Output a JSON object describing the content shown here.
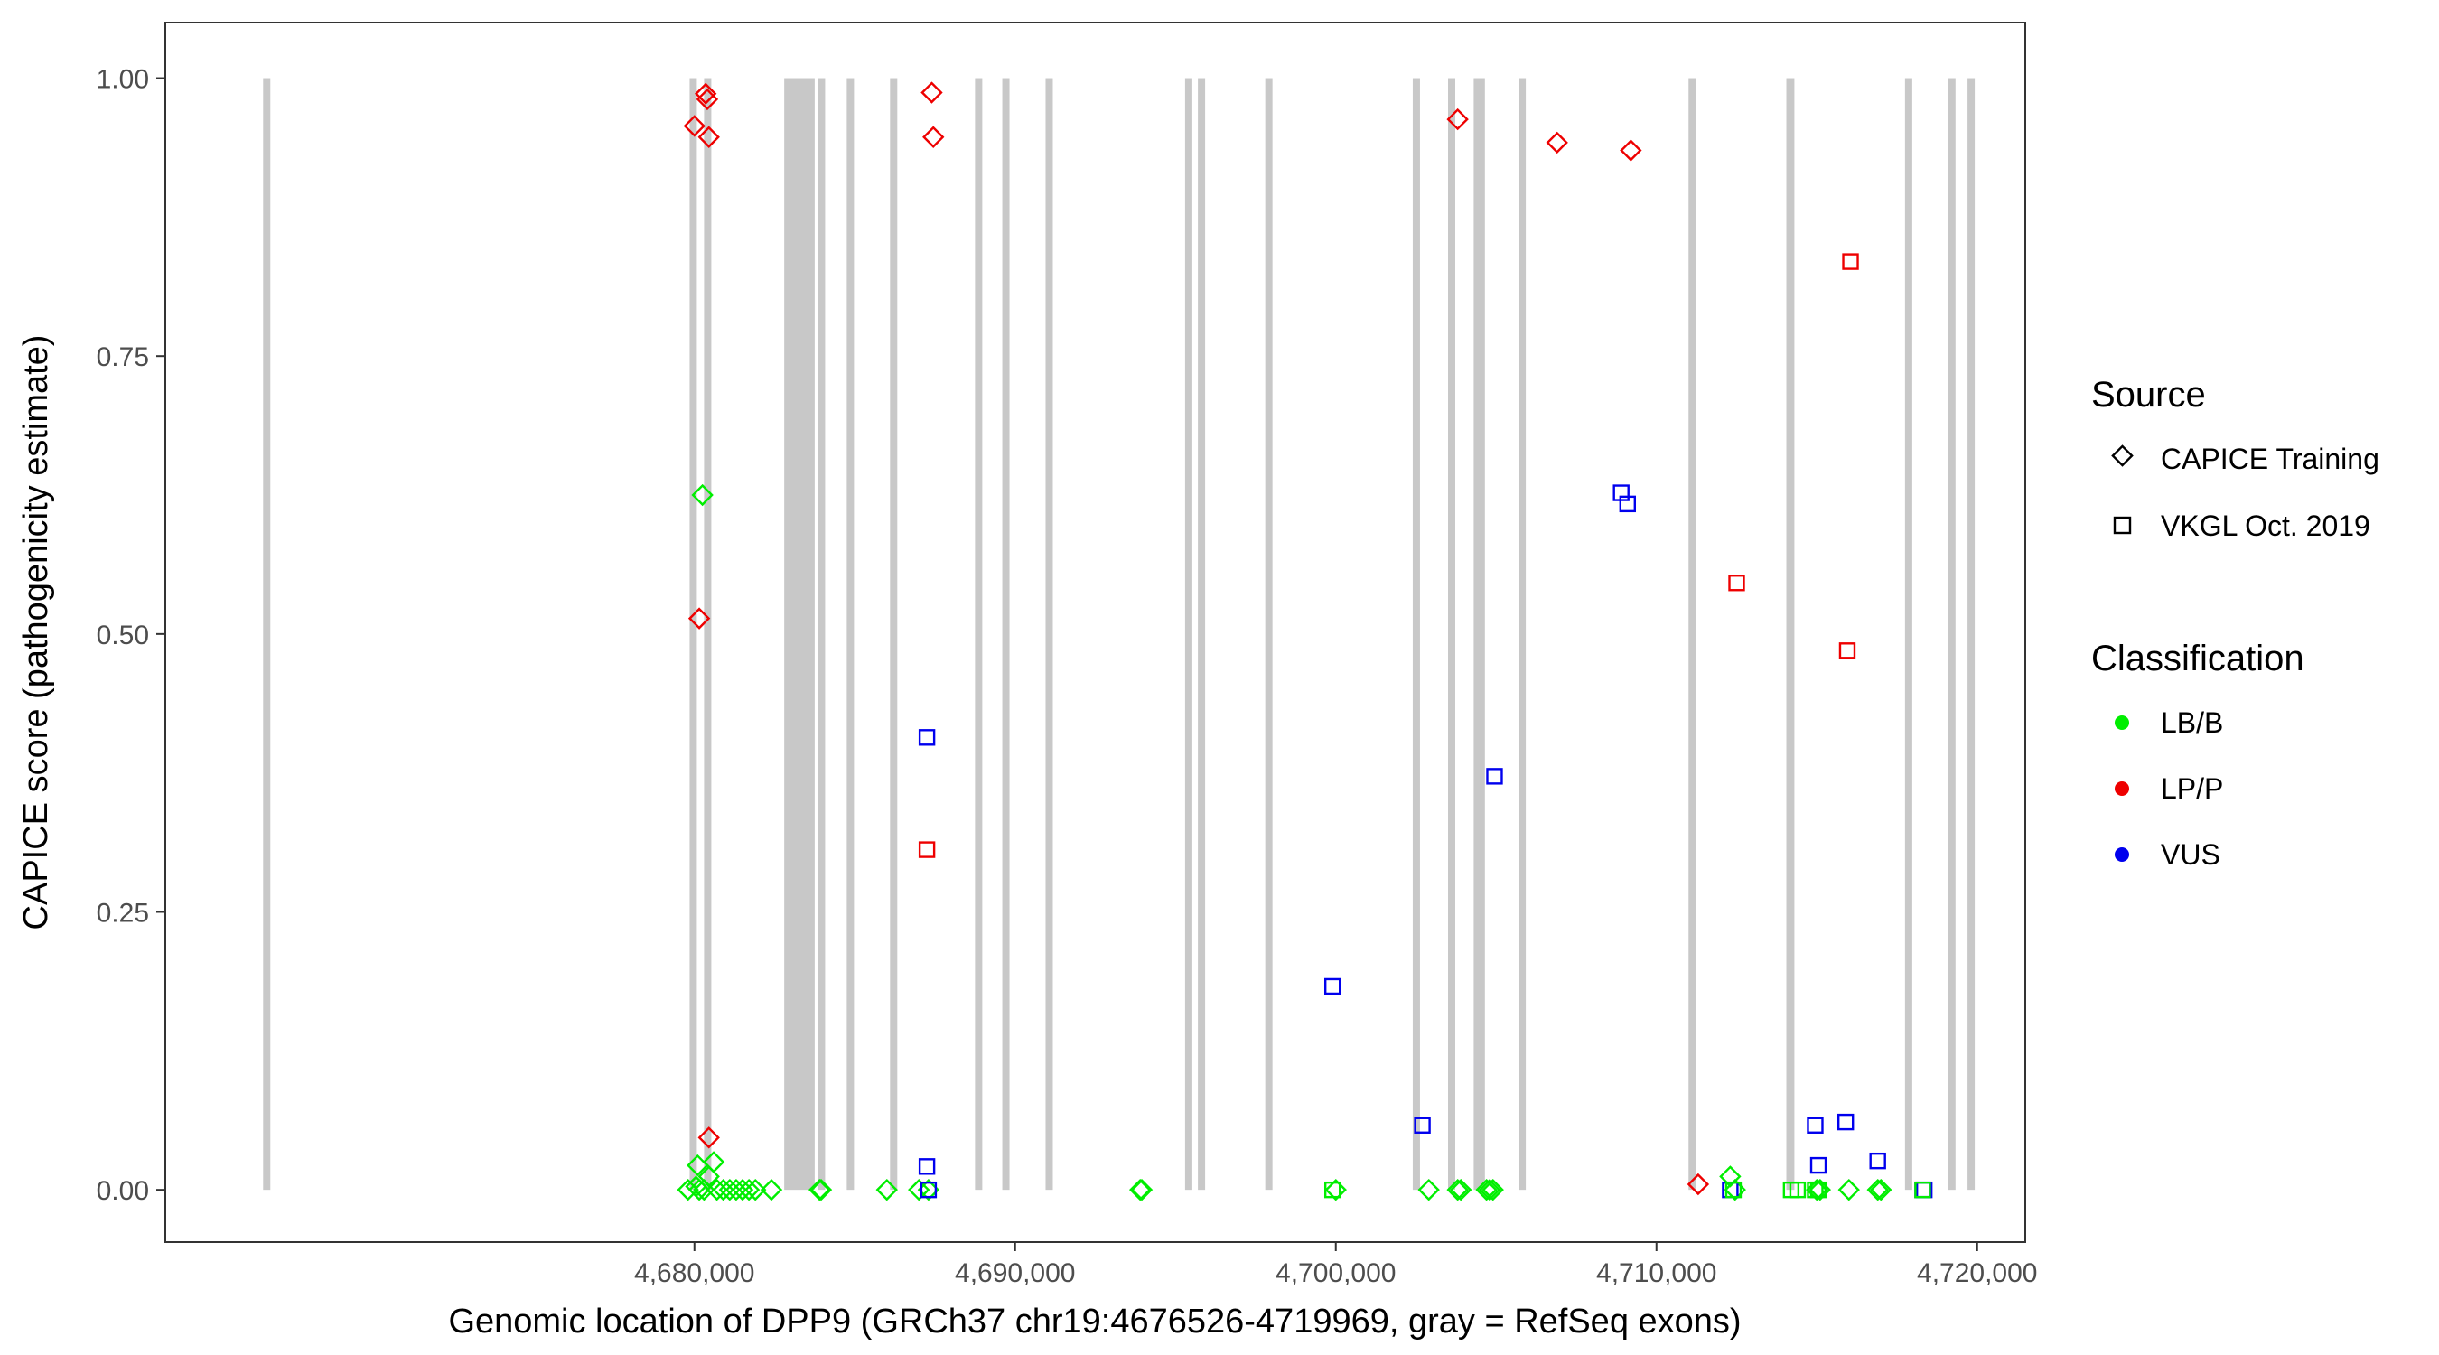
{
  "chart_data": {
    "type": "scatter",
    "xlabel": "Genomic location of DPP9 (GRCh37 chr19:4676526-4719969, gray = RefSeq exons)",
    "ylabel": "CAPICE score (pathogenicity estimate)",
    "xlim": [
      4663500,
      4721500
    ],
    "ylim": [
      -0.047,
      1.05
    ],
    "x_ticks": [
      4680000,
      4690000,
      4700000,
      4710000,
      4720000
    ],
    "x_tick_labels": [
      "4,680,000",
      "4,690,000",
      "4,700,000",
      "4,710,000",
      "4,720,000"
    ],
    "y_ticks": [
      0,
      0.25,
      0.5,
      0.75,
      1
    ],
    "y_tick_labels": [
      "0.00",
      "0.25",
      "0.50",
      "0.75",
      "1.00"
    ],
    "grid": false,
    "exons": [
      [
        4666550,
        4666750
      ],
      [
        4679850,
        4680050
      ],
      [
        4680300,
        4680400
      ],
      [
        4682800,
        4683750
      ],
      [
        4683850,
        4683900
      ],
      [
        4684750,
        4684850
      ],
      [
        4686100,
        4686250
      ],
      [
        4688750,
        4688900
      ],
      [
        4689600,
        4689800
      ],
      [
        4690950,
        4691050
      ],
      [
        4695300,
        4695500
      ],
      [
        4695700,
        4695900
      ],
      [
        4697800,
        4698000
      ],
      [
        4702400,
        4702550
      ],
      [
        4703500,
        4703650
      ],
      [
        4704300,
        4704650
      ],
      [
        4705700,
        4705850
      ],
      [
        4711000,
        4711050
      ],
      [
        4714050,
        4714300
      ],
      [
        4717750,
        4717850
      ],
      [
        4719100,
        4719250
      ],
      [
        4719700,
        4719850
      ]
    ],
    "legend": {
      "source_title": "Source",
      "source_items": [
        {
          "label": "CAPICE Training",
          "shape": "diamond"
        },
        {
          "label": "VKGL Oct. 2019",
          "shape": "square"
        }
      ],
      "class_title": "Classification",
      "class_items": [
        {
          "label": "LB/B",
          "color": "#00ee00"
        },
        {
          "label": "LP/P",
          "color": "#ee0000"
        },
        {
          "label": "VUS",
          "color": "#0000ee"
        }
      ],
      "placement": "right"
    },
    "colors": {
      "LB/B": "#00ee00",
      "LP/P": "#ee0000",
      "VUS": "#0000ee",
      "exon": "#c8c8c8"
    },
    "series": [
      {
        "name": "CAPICE Training / LP/P",
        "shape": "diamond",
        "class": "LP/P",
        "points": [
          [
            4680000,
            0.957
          ],
          [
            4680350,
            0.986
          ],
          [
            4680400,
            0.981
          ],
          [
            4680450,
            0.947
          ],
          [
            4687400,
            0.987
          ],
          [
            4687450,
            0.947
          ],
          [
            4680150,
            0.514
          ],
          [
            4680450,
            0.047
          ],
          [
            4703800,
            0.963
          ],
          [
            4706900,
            0.942
          ],
          [
            4709200,
            0.935
          ],
          [
            4711300,
            0.005
          ]
        ]
      },
      {
        "name": "CAPICE Training / LB/B",
        "shape": "diamond",
        "class": "LB/B",
        "points": [
          [
            4680250,
            0.625
          ],
          [
            4680100,
            0.022
          ],
          [
            4680600,
            0.025
          ],
          [
            4680450,
            0.012
          ],
          [
            4680050,
            0.003
          ],
          [
            4679800,
            0.0
          ],
          [
            4680150,
            0.0
          ],
          [
            4680300,
            0.0
          ],
          [
            4680700,
            0.0
          ],
          [
            4680900,
            0.0
          ],
          [
            4681100,
            0.0
          ],
          [
            4681300,
            0.0
          ],
          [
            4681500,
            0.0
          ],
          [
            4681700,
            0.0
          ],
          [
            4681900,
            0.0
          ],
          [
            4682400,
            0.0
          ],
          [
            4683900,
            0.0
          ],
          [
            4683950,
            0.0
          ],
          [
            4686000,
            0.0
          ],
          [
            4687000,
            0.0
          ],
          [
            4687300,
            0.0
          ],
          [
            4693900,
            0.0
          ],
          [
            4693950,
            0.0
          ],
          [
            4700000,
            0.0
          ],
          [
            4702900,
            0.0
          ],
          [
            4703800,
            0.0
          ],
          [
            4703900,
            0.0
          ],
          [
            4704700,
            0.0
          ],
          [
            4704800,
            0.0
          ],
          [
            4704900,
            0.0
          ],
          [
            4712300,
            0.012
          ],
          [
            4712450,
            0.0
          ],
          [
            4715000,
            0.0
          ],
          [
            4715100,
            0.0
          ],
          [
            4716000,
            0.0
          ],
          [
            4716900,
            0.0
          ],
          [
            4717000,
            0.0
          ]
        ]
      },
      {
        "name": "VKGL Oct. 2019 / LP/P",
        "shape": "square",
        "class": "LP/P",
        "points": [
          [
            4687250,
            0.306
          ],
          [
            4712500,
            0.546
          ],
          [
            4716050,
            0.835
          ],
          [
            4715950,
            0.485
          ]
        ]
      },
      {
        "name": "VKGL Oct. 2019 / VUS",
        "shape": "square",
        "class": "VUS",
        "points": [
          [
            4687250,
            0.407
          ],
          [
            4687250,
            0.021
          ],
          [
            4687300,
            0.0
          ],
          [
            4699900,
            0.183
          ],
          [
            4702700,
            0.058
          ],
          [
            4704950,
            0.372
          ],
          [
            4708900,
            0.627
          ],
          [
            4709100,
            0.617
          ],
          [
            4712300,
            0.0
          ],
          [
            4714950,
            0.058
          ],
          [
            4715050,
            0.022
          ],
          [
            4715900,
            0.061
          ],
          [
            4716900,
            0.026
          ],
          [
            4718300,
            0.0
          ],
          [
            4718350,
            0.0
          ]
        ]
      },
      {
        "name": "VKGL Oct. 2019 / LB/B",
        "shape": "square",
        "class": "LB/B",
        "points": [
          [
            4699900,
            0.0
          ],
          [
            4712400,
            0.0
          ],
          [
            4714200,
            0.0
          ],
          [
            4714400,
            0.0
          ],
          [
            4714950,
            0.0
          ],
          [
            4715050,
            0.0
          ],
          [
            4718300,
            0.0
          ]
        ]
      }
    ]
  }
}
